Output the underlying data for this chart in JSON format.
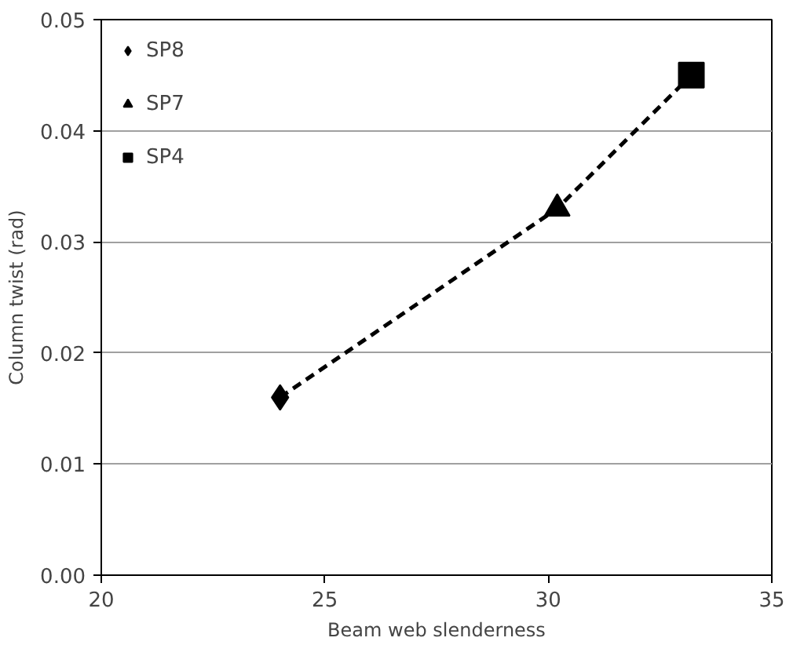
{
  "chart_data": {
    "type": "scatter",
    "xlabel": "Beam web slenderness",
    "ylabel": "Column twist (rad)",
    "xlim": [
      20,
      35
    ],
    "xticks": [
      20,
      25,
      30,
      35
    ],
    "ylim": [
      0,
      0.05
    ],
    "yticks": [
      {
        "value": 0,
        "label": "0.00"
      },
      {
        "value": 0.01,
        "label": "0.01"
      },
      {
        "value": 0.02,
        "label": "0.02"
      },
      {
        "value": 0.03,
        "label": "0.03"
      },
      {
        "value": 0.04,
        "label": "0.04"
      },
      {
        "value": 0.05,
        "label": "0.05"
      }
    ],
    "grid": "y",
    "legend": "top left",
    "series": [
      {
        "type": "line",
        "x": [
          24,
          30.2,
          33.2
        ],
        "values": [
          0.016,
          0.033,
          0.045
        ],
        "color": "#000000",
        "marker": "none",
        "line_style": "dashed"
      },
      {
        "name": "SP8",
        "x": [
          24
        ],
        "values": [
          0.016
        ],
        "color": "#000000",
        "marker": "diamond"
      },
      {
        "name": "SP7",
        "x": [
          30.2
        ],
        "values": [
          0.033
        ],
        "color": "#000000",
        "marker": "triangle"
      },
      {
        "name": "SP4",
        "x": [
          33.2
        ],
        "values": [
          0.045
        ],
        "color": "#000000",
        "marker": "square"
      }
    ]
  }
}
